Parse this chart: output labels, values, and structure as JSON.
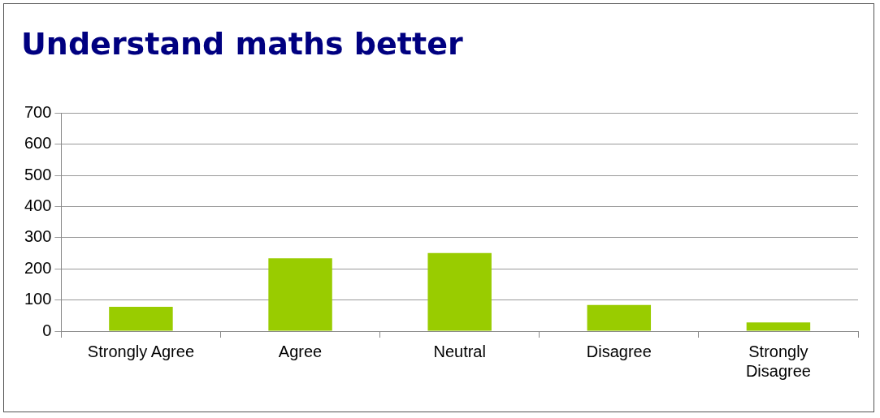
{
  "chart_data": {
    "type": "bar",
    "title": "Understand maths better",
    "categories": [
      "Strongly Agree",
      "Agree",
      "Neutral",
      "Disagree",
      "Strongly Disagree"
    ],
    "values": [
      78,
      234,
      251,
      84,
      28
    ],
    "color": "#99cc00",
    "ylim": [
      0,
      700
    ],
    "yticks": [
      0,
      100,
      200,
      300,
      400,
      500,
      600,
      700
    ],
    "grid": "y"
  }
}
